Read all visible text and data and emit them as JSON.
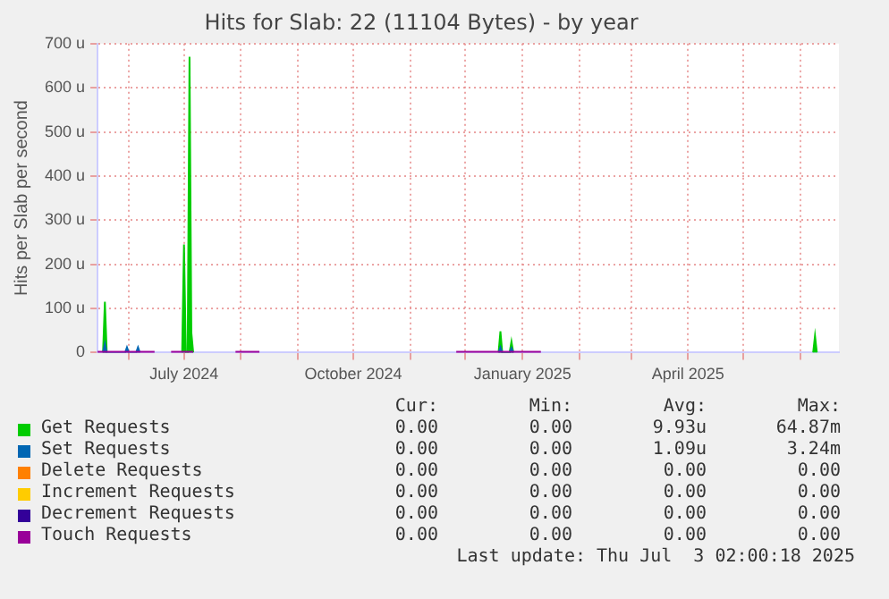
{
  "chart_data": {
    "type": "area",
    "title": "Hits for Slab: 22 (11104 Bytes) - by year",
    "ylabel": "Hits per Slab per second",
    "x": [
      "2024-05-15",
      "2024-05-18",
      "2024-05-19",
      "2024-05-20",
      "2024-05-30",
      "2024-05-31",
      "2024-06-01",
      "2024-06-05",
      "2024-06-06",
      "2024-06-07",
      "2024-06-15",
      "2024-06-16",
      "2024-06-24",
      "2024-06-30",
      "2024-07-01",
      "2024-07-02",
      "2024-07-03",
      "2024-07-04",
      "2024-07-05",
      "2024-07-06",
      "2024-07-07",
      "2024-07-29",
      "2024-08-11",
      "2024-08-12",
      "2024-11-26",
      "2024-12-19",
      "2024-12-20",
      "2024-12-21",
      "2024-12-25",
      "2024-12-26",
      "2024-12-27",
      "2025-01-11",
      "2025-01-12",
      "2025-06-02",
      "2025-06-08",
      "2025-06-09",
      "2025-06-10"
    ],
    "series": [
      {
        "name": "Get Requests",
        "color": "#00cc00",
        "values": [
          null,
          0,
          115,
          0,
          null,
          null,
          null,
          null,
          null,
          null,
          null,
          null,
          null,
          0,
          245,
          0,
          0,
          670,
          45,
          0,
          null,
          null,
          null,
          null,
          null,
          0,
          48,
          0,
          0,
          25,
          0,
          null,
          null,
          null,
          0,
          38,
          0
        ]
      },
      {
        "name": "Set Requests",
        "color": "#0066b3",
        "values": [
          null,
          0,
          20,
          0,
          0,
          12,
          0,
          0,
          12,
          0,
          null,
          null,
          null,
          null,
          null,
          null,
          null,
          null,
          null,
          null,
          null,
          null,
          null,
          null,
          null,
          0,
          12,
          0,
          0,
          10,
          0,
          null,
          null,
          null,
          null,
          null,
          null
        ]
      },
      {
        "name": "Delete Requests",
        "color": "#ff8000",
        "type": "line",
        "values": [
          null,
          null,
          null,
          null,
          null,
          null,
          null,
          null,
          null,
          null,
          null,
          null,
          null,
          null,
          null,
          null,
          null,
          null,
          null,
          null,
          null,
          null,
          null,
          null,
          null,
          null,
          null,
          null,
          null,
          null,
          null,
          null,
          null,
          null,
          null,
          null,
          null
        ]
      },
      {
        "name": "Increment Requests",
        "color": "#ffcc00",
        "type": "line",
        "values": [
          null,
          null,
          null,
          null,
          null,
          null,
          null,
          null,
          null,
          null,
          null,
          null,
          null,
          null,
          null,
          null,
          null,
          null,
          null,
          null,
          null,
          null,
          null,
          null,
          null,
          null,
          null,
          null,
          null,
          null,
          null,
          null,
          null,
          null,
          null,
          null,
          null
        ]
      },
      {
        "name": "Decrement Requests",
        "color": "#330099",
        "type": "line",
        "values": [
          null,
          null,
          null,
          null,
          null,
          null,
          null,
          null,
          null,
          null,
          null,
          null,
          null,
          null,
          null,
          null,
          null,
          null,
          null,
          null,
          null,
          null,
          null,
          null,
          null,
          null,
          null,
          null,
          null,
          null,
          null,
          null,
          null,
          null,
          null,
          null,
          null
        ]
      },
      {
        "name": "Touch Requests",
        "color": "#990099",
        "type": "line",
        "values": [
          0,
          0,
          0,
          0,
          0,
          0,
          0,
          0,
          0,
          0,
          0,
          null,
          0,
          0,
          0,
          0,
          0,
          0,
          0,
          0,
          null,
          0,
          0,
          null,
          0,
          0,
          0,
          0,
          0,
          0,
          0,
          0,
          null,
          null,
          null,
          null,
          null
        ]
      }
    ],
    "xlim": [
      "2024-05-15",
      "2025-06-22"
    ],
    "xticks": [
      {
        "value": "2024-06-01",
        "label": null
      },
      {
        "value": "2024-07-01",
        "label": "July 2024"
      },
      {
        "value": "2024-08-01",
        "label": null
      },
      {
        "value": "2024-09-01",
        "label": null
      },
      {
        "value": "2024-10-01",
        "label": "October 2024"
      },
      {
        "value": "2024-11-01",
        "label": null
      },
      {
        "value": "2024-12-01",
        "label": null
      },
      {
        "value": "2025-01-01",
        "label": "January 2025"
      },
      {
        "value": "2025-02-01",
        "label": null
      },
      {
        "value": "2025-03-01",
        "label": null
      },
      {
        "value": "2025-04-01",
        "label": "April 2025"
      },
      {
        "value": "2025-05-01",
        "label": null
      },
      {
        "value": "2025-06-01",
        "label": null
      }
    ],
    "ylim": [
      0,
      700
    ],
    "yticks": [
      0,
      {
        "value": 100,
        "label": "100 u"
      },
      {
        "value": 200,
        "label": "200 u"
      },
      {
        "value": 300,
        "label": "300 u"
      },
      {
        "value": 400,
        "label": "400 u"
      },
      {
        "value": 500,
        "label": "500 u"
      },
      {
        "value": 600,
        "label": "600 u"
      },
      {
        "value": 700,
        "label": "700 u"
      }
    ],
    "grid": true,
    "legend": "bottom",
    "annotations": [
      "Cur:",
      "Min:",
      "Avg:",
      "Max:",
      "0.00",
      "0.00",
      "9.93u",
      "64.87m",
      "0.00",
      "0.00",
      "1.09u",
      "3.24m",
      "0.00",
      "0.00",
      "0.00",
      "0.00",
      "0.00",
      "0.00",
      "0.00",
      "0.00",
      "0.00",
      "0.00",
      "0.00",
      "0.00",
      "0.00",
      "0.00",
      "0.00",
      "0.00",
      "Last update: Thu Jul  3 02:00:18 2025"
    ]
  }
}
